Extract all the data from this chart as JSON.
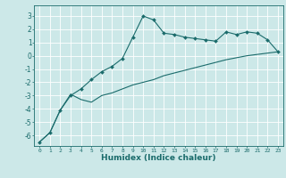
{
  "xlabel": "Humidex (Indice chaleur)",
  "bg_color": "#cce8e8",
  "grid_color": "#ffffff",
  "line_color": "#1a6b6b",
  "xlim": [
    -0.5,
    23.5
  ],
  "ylim": [
    -6.8,
    3.8
  ],
  "yticks": [
    -6,
    -5,
    -4,
    -3,
    -2,
    -1,
    0,
    1,
    2,
    3
  ],
  "xticks": [
    0,
    1,
    2,
    3,
    4,
    5,
    6,
    7,
    8,
    9,
    10,
    11,
    12,
    13,
    14,
    15,
    16,
    17,
    18,
    19,
    20,
    21,
    22,
    23
  ],
  "series1_x": [
    0,
    1,
    2,
    3,
    4,
    5,
    6,
    7,
    8,
    9,
    10,
    11,
    12,
    13,
    14,
    15,
    16,
    17,
    18,
    19,
    20,
    21,
    22,
    23
  ],
  "series1_y": [
    -6.5,
    -5.8,
    -4.1,
    -3.0,
    -2.5,
    -1.8,
    -1.2,
    -0.8,
    -0.2,
    1.4,
    3.0,
    2.7,
    1.7,
    1.6,
    1.4,
    1.3,
    1.2,
    1.1,
    1.8,
    1.6,
    1.8,
    1.7,
    1.2,
    0.3
  ],
  "series2_x": [
    0,
    1,
    2,
    3,
    4,
    5,
    6,
    7,
    8,
    9,
    10,
    11,
    12,
    13,
    14,
    15,
    16,
    17,
    18,
    19,
    20,
    21,
    22,
    23
  ],
  "series2_y": [
    -6.5,
    -5.8,
    -4.1,
    -2.9,
    -3.3,
    -3.5,
    -3.0,
    -2.8,
    -2.5,
    -2.2,
    -2.0,
    -1.8,
    -1.5,
    -1.3,
    -1.1,
    -0.9,
    -0.7,
    -0.5,
    -0.3,
    -0.15,
    0.0,
    0.1,
    0.2,
    0.3
  ]
}
